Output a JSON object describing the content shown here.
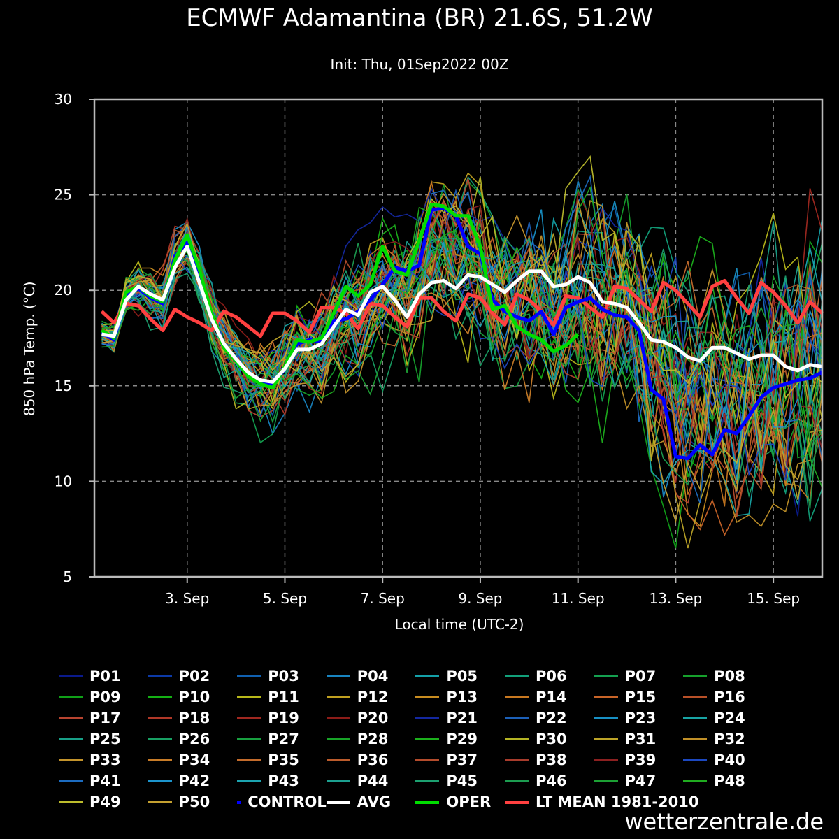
{
  "header": {
    "title": "ECMWF Adamantina (BR) 21.6S, 51.2W",
    "subtitle": "Init: Thu, 01Sep2022 00Z"
  },
  "footer": {
    "watermark": "wetterzentrale.de"
  },
  "chart_data": {
    "type": "line",
    "title": "ECMWF Adamantina (BR) 21.6S, 51.2W",
    "subtitle": "Init: Thu, 01Sep2022 00Z",
    "xlabel": "Local time (UTC-2)",
    "ylabel": "850 hPa Temp. (°C)",
    "ylim": [
      5,
      30
    ],
    "xlim_days": [
      1.1,
      16.0
    ],
    "y_ticks": [
      5,
      10,
      15,
      20,
      25,
      30
    ],
    "x_ticks": [
      {
        "day": 3,
        "label": "3. Sep"
      },
      {
        "day": 5,
        "label": "5. Sep"
      },
      {
        "day": 7,
        "label": "7. Sep"
      },
      {
        "day": 9,
        "label": "9. Sep"
      },
      {
        "day": 11,
        "label": "11. Sep"
      },
      {
        "day": 13,
        "label": "13. Sep"
      },
      {
        "day": 15,
        "label": "15. Sep"
      }
    ],
    "grid": true,
    "legend_position": "bottom",
    "lead_series": [
      {
        "name": "CONTROL",
        "color": "#0000ff",
        "x": [
          1.25,
          1.5,
          1.75,
          2.0,
          2.25,
          2.5,
          2.75,
          3.0,
          3.25,
          3.5,
          3.75,
          4.0,
          4.25,
          4.5,
          4.75,
          5.0,
          5.25,
          5.5,
          5.75,
          6.0,
          6.25,
          6.5,
          6.75,
          7.0,
          7.25,
          7.5,
          7.75,
          8.0,
          8.25,
          8.5,
          8.75,
          9.0,
          9.25,
          9.5,
          9.75,
          10.0,
          10.25,
          10.5,
          10.75,
          11.0,
          11.25,
          11.5,
          11.75,
          12.0,
          12.25,
          12.5,
          12.75,
          13.0,
          13.25,
          13.5,
          13.75,
          14.0,
          14.25,
          14.5,
          14.75,
          15.0,
          15.25,
          15.5,
          15.75,
          16.0
        ],
        "values": [
          17.8,
          17.4,
          19.8,
          20.1,
          19.6,
          19.3,
          21.8,
          22.5,
          20.8,
          18.6,
          17.2,
          16.3,
          15.6,
          15.2,
          15.0,
          15.9,
          17.2,
          17.4,
          17.3,
          18.4,
          18.5,
          18.9,
          19.5,
          20.3,
          21.2,
          21.0,
          21.3,
          24.2,
          24.3,
          23.9,
          22.3,
          21.9,
          19.5,
          18.9,
          18.6,
          18.4,
          18.9,
          17.7,
          19.1,
          19.4,
          19.6,
          19.0,
          18.7,
          18.6,
          17.9,
          14.8,
          14.3,
          11.3,
          11.2,
          11.9,
          11.4,
          12.7,
          12.5,
          13.4,
          14.4,
          14.9,
          15.1,
          15.3,
          15.4,
          15.7
        ]
      },
      {
        "name": "AVG",
        "color": "#ffffff",
        "x": [
          1.25,
          1.5,
          1.75,
          2.0,
          2.25,
          2.5,
          2.75,
          3.0,
          3.25,
          3.5,
          3.75,
          4.0,
          4.25,
          4.5,
          4.75,
          5.0,
          5.25,
          5.5,
          5.75,
          6.0,
          6.25,
          6.5,
          6.75,
          7.0,
          7.25,
          7.5,
          7.75,
          8.0,
          8.25,
          8.5,
          8.75,
          9.0,
          9.25,
          9.5,
          9.75,
          10.0,
          10.25,
          10.5,
          10.75,
          11.0,
          11.25,
          11.5,
          11.75,
          12.0,
          12.25,
          12.5,
          12.75,
          13.0,
          13.25,
          13.5,
          13.75,
          14.0,
          14.25,
          14.5,
          14.75,
          15.0,
          15.25,
          15.5,
          15.75,
          16.0
        ],
        "values": [
          17.7,
          17.6,
          19.5,
          20.2,
          19.8,
          19.5,
          21.2,
          22.3,
          20.4,
          18.5,
          17.2,
          16.4,
          15.7,
          15.3,
          15.2,
          15.9,
          16.9,
          16.9,
          17.2,
          18.1,
          19.0,
          18.7,
          19.9,
          20.2,
          19.5,
          18.6,
          19.8,
          20.4,
          20.5,
          20.1,
          20.8,
          20.7,
          20.3,
          19.9,
          20.5,
          21.0,
          21.0,
          20.2,
          20.3,
          20.7,
          20.4,
          19.4,
          19.3,
          19.1,
          18.3,
          17.4,
          17.3,
          17.0,
          16.5,
          16.3,
          17.0,
          17.0,
          16.7,
          16.4,
          16.6,
          16.6,
          16.0,
          15.8,
          16.1,
          16.0
        ]
      },
      {
        "name": "OPER",
        "color": "#00dd00",
        "x": [
          1.25,
          1.5,
          1.75,
          2.0,
          2.25,
          2.5,
          2.75,
          3.0,
          3.25,
          3.5,
          3.75,
          4.0,
          4.25,
          4.5,
          4.75,
          5.0,
          5.25,
          5.5,
          5.75,
          6.0,
          6.25,
          6.5,
          6.75,
          7.0,
          7.25,
          7.5,
          7.75,
          8.0,
          8.25,
          8.5,
          8.75,
          9.0,
          9.25,
          9.5,
          9.75,
          10.0,
          10.25,
          10.5,
          10.75,
          11.0
        ],
        "values": [
          17.9,
          17.5,
          19.9,
          20.2,
          19.7,
          19.4,
          21.6,
          22.9,
          21.1,
          18.8,
          17.0,
          16.3,
          15.5,
          15.1,
          14.9,
          16.0,
          17.4,
          17.3,
          17.5,
          18.8,
          20.2,
          19.7,
          20.3,
          22.3,
          21.0,
          20.8,
          22.6,
          24.5,
          24.4,
          23.9,
          23.9,
          22.3,
          19.0,
          19.2,
          18.1,
          17.7,
          17.4,
          16.8,
          17.1,
          17.7
        ]
      },
      {
        "name": "LT MEAN 1981-2010",
        "color": "#ff4040",
        "x": [
          1.25,
          1.5,
          1.75,
          2.0,
          2.25,
          2.5,
          2.75,
          3.0,
          3.25,
          3.5,
          3.75,
          4.0,
          4.25,
          4.5,
          4.75,
          5.0,
          5.25,
          5.5,
          5.75,
          6.0,
          6.25,
          6.5,
          6.75,
          7.0,
          7.25,
          7.5,
          7.75,
          8.0,
          8.25,
          8.5,
          8.75,
          9.0,
          9.25,
          9.5,
          9.75,
          10.0,
          10.25,
          10.5,
          10.75,
          11.0,
          11.25,
          11.5,
          11.75,
          12.0,
          12.25,
          12.5,
          12.75,
          13.0,
          13.25,
          13.5,
          13.75,
          14.0,
          14.25,
          14.5,
          14.75,
          15.0,
          15.25,
          15.5,
          15.75,
          16.0
        ],
        "values": [
          18.9,
          18.3,
          19.3,
          19.2,
          18.5,
          17.9,
          19.0,
          18.6,
          18.3,
          17.9,
          18.9,
          18.6,
          18.1,
          17.6,
          18.8,
          18.8,
          18.4,
          17.8,
          19.1,
          19.1,
          18.8,
          18.0,
          19.3,
          19.2,
          18.6,
          18.1,
          19.6,
          19.6,
          18.9,
          18.4,
          19.8,
          19.6,
          18.8,
          18.2,
          19.8,
          19.5,
          18.9,
          18.2,
          19.7,
          19.6,
          19.1,
          18.6,
          20.2,
          20.1,
          19.5,
          18.9,
          20.4,
          20.0,
          19.3,
          18.6,
          20.2,
          20.5,
          19.6,
          18.8,
          20.4,
          19.9,
          19.2,
          18.3,
          19.4,
          18.8
        ]
      }
    ],
    "member_series": [
      {
        "name": "P01",
        "color": "#0a1a8c"
      },
      {
        "name": "P02",
        "color": "#0c3aa8"
      },
      {
        "name": "P03",
        "color": "#1060b0"
      },
      {
        "name": "P04",
        "color": "#1884c0"
      },
      {
        "name": "P05",
        "color": "#14a0a8"
      },
      {
        "name": "P06",
        "color": "#12a07a"
      },
      {
        "name": "P07",
        "color": "#14a050"
      },
      {
        "name": "P08",
        "color": "#16a02c"
      },
      {
        "name": "P09",
        "color": "#10a018"
      },
      {
        "name": "P10",
        "color": "#14b014"
      },
      {
        "name": "P11",
        "color": "#b8b81a"
      },
      {
        "name": "P12",
        "color": "#c0a020"
      },
      {
        "name": "P13",
        "color": "#c88c20"
      },
      {
        "name": "P14",
        "color": "#c87820"
      },
      {
        "name": "P15",
        "color": "#c86428"
      },
      {
        "name": "P16",
        "color": "#b85028"
      },
      {
        "name": "P17",
        "color": "#b84430"
      },
      {
        "name": "P18",
        "color": "#b03828"
      },
      {
        "name": "P19",
        "color": "#a02820"
      },
      {
        "name": "P20",
        "color": "#8c1c18"
      },
      {
        "name": "P21",
        "color": "#1428a0"
      },
      {
        "name": "P22",
        "color": "#1c60b8"
      },
      {
        "name": "P23",
        "color": "#1890c4"
      },
      {
        "name": "P24",
        "color": "#18a4a4"
      },
      {
        "name": "P25",
        "color": "#18a088"
      },
      {
        "name": "P26",
        "color": "#18a064"
      },
      {
        "name": "P27",
        "color": "#18a040"
      },
      {
        "name": "P28",
        "color": "#18a428"
      },
      {
        "name": "P29",
        "color": "#1cb01c"
      },
      {
        "name": "P30",
        "color": "#b4b424"
      },
      {
        "name": "P31",
        "color": "#bca428"
      },
      {
        "name": "P32",
        "color": "#c09028"
      },
      {
        "name": "P33",
        "color": "#c4942c"
      },
      {
        "name": "P34",
        "color": "#c87c28"
      },
      {
        "name": "P35",
        "color": "#c46c2c"
      },
      {
        "name": "P36",
        "color": "#bc5c2c"
      },
      {
        "name": "P37",
        "color": "#b44c2c"
      },
      {
        "name": "P38",
        "color": "#a83c2c"
      },
      {
        "name": "P39",
        "color": "#8c2020"
      },
      {
        "name": "P40",
        "color": "#1c48c0"
      },
      {
        "name": "P41",
        "color": "#1c6cc0"
      },
      {
        "name": "P42",
        "color": "#1c94cc"
      },
      {
        "name": "P43",
        "color": "#1ca4b0"
      },
      {
        "name": "P44",
        "color": "#1ca090"
      },
      {
        "name": "P45",
        "color": "#1ca070"
      },
      {
        "name": "P46",
        "color": "#1c9c50"
      },
      {
        "name": "P47",
        "color": "#1ca034"
      },
      {
        "name": "P48",
        "color": "#20ac20"
      },
      {
        "name": "P49",
        "color": "#bcbc2c"
      },
      {
        "name": "P50",
        "color": "#c4a030"
      }
    ]
  }
}
